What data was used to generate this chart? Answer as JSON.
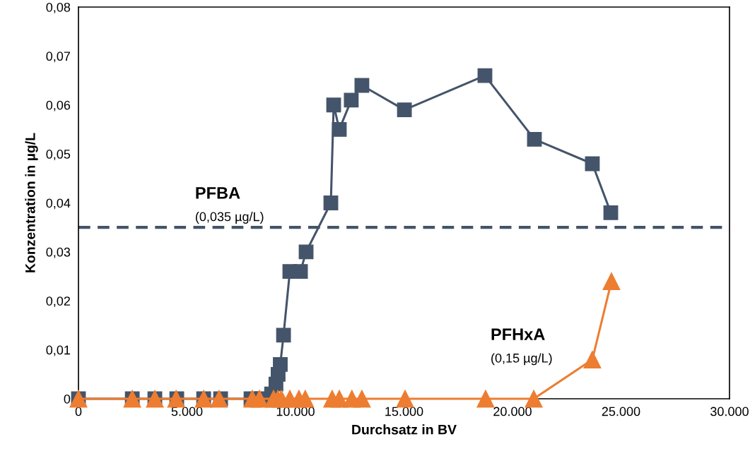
{
  "chart_data": {
    "type": "line",
    "xlabel": "Durchsatz in BV",
    "ylabel": "Konzentration in µg/L",
    "xlim": [
      0,
      30000
    ],
    "xticks": [
      {
        "value": 0,
        "label": "0"
      },
      {
        "value": 5000,
        "label": "5.000"
      },
      {
        "value": 10000,
        "label": "10.000"
      },
      {
        "value": 15000,
        "label": "15.000"
      },
      {
        "value": 20000,
        "label": "20.000"
      },
      {
        "value": 25000,
        "label": "25.000"
      },
      {
        "value": 30000,
        "label": "30.000"
      }
    ],
    "ylim": [
      0,
      0.08
    ],
    "yticks": [
      {
        "value": 0,
        "label": "0"
      },
      {
        "value": 0.01,
        "label": "0,01"
      },
      {
        "value": 0.02,
        "label": "0,02"
      },
      {
        "value": 0.03,
        "label": "0,03"
      },
      {
        "value": 0.04,
        "label": "0,04"
      },
      {
        "value": 0.05,
        "label": "0,05"
      },
      {
        "value": 0.06,
        "label": "0,06"
      },
      {
        "value": 0.07,
        "label": "0,07"
      },
      {
        "value": 0.08,
        "label": "0,08"
      }
    ],
    "grid": false,
    "legend": false,
    "series": [
      {
        "color": "#44546a",
        "marker": "square",
        "x": [
          0,
          2480,
          3520,
          4530,
          5770,
          6550,
          7950,
          8450,
          8900,
          9100,
          9200,
          9300,
          9450,
          9740,
          10230,
          10490,
          11630,
          11760,
          12020,
          12570,
          13060,
          15020,
          18730,
          21010,
          23680,
          24530
        ],
        "values": [
          0,
          0,
          0,
          0,
          0,
          0,
          0,
          0,
          0.001,
          0.003,
          0.005,
          0.007,
          0.013,
          0.026,
          0.026,
          0.03,
          0.04,
          0.06,
          0.055,
          0.061,
          0.064,
          0.059,
          0.066,
          0.053,
          0.048,
          0.038
        ]
      },
      {
        "color": "#ed7d31",
        "marker": "triangle",
        "x": [
          0,
          2480,
          3520,
          4500,
          5770,
          6480,
          8010,
          8340,
          8990,
          9190,
          9350,
          9740,
          10160,
          10450,
          11690,
          12020,
          12600,
          13060,
          15050,
          18760,
          20980,
          23680,
          24560
        ],
        "values": [
          0,
          0,
          0,
          0,
          0,
          0,
          0,
          0,
          0,
          0,
          0,
          0,
          0,
          0,
          0,
          0,
          0,
          0,
          0,
          0,
          0,
          0.008,
          0.024
        ]
      }
    ],
    "ref_lines": [
      {
        "axis": "y",
        "value": 0.035,
        "color": "#44546a",
        "line_style": "dashed"
      }
    ],
    "annotations": [
      "PFBA\n(0,035 µg/L)",
      "PFHxA\n(0,15 µg/L)"
    ]
  }
}
